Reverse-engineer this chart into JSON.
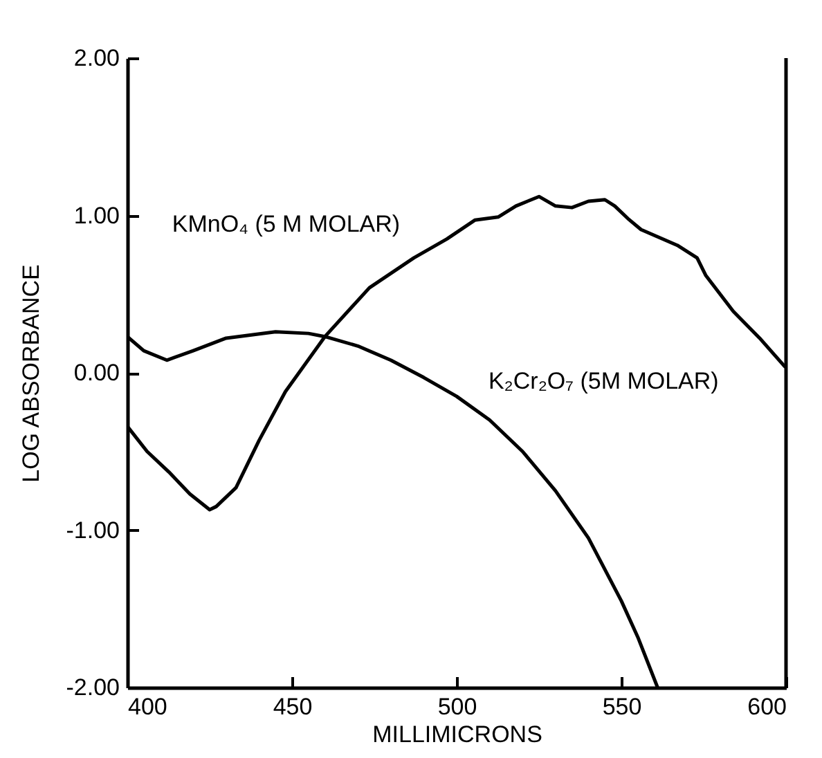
{
  "chart_data": {
    "type": "line",
    "xlabel": "MILLIMICRONS",
    "ylabel": "LOG  ABSORBANCE",
    "xlim": [
      400,
      600
    ],
    "xticks": [
      400,
      450,
      500,
      550,
      600
    ],
    "ylim": [
      -2,
      2
    ],
    "yticks": [
      {
        "value": -2,
        "label": "-2.00"
      },
      {
        "value": -1,
        "label": "-1.00"
      },
      {
        "value": 0,
        "label": "0.00"
      },
      {
        "value": 1,
        "label": "1.00"
      },
      {
        "value": 2,
        "label": "2.00"
      }
    ],
    "grid": false,
    "line_style": "solid",
    "series": [
      {
        "color": "#000000",
        "x": [
          400,
          406,
          412.6,
          419,
          425,
          427,
          433,
          440,
          448,
          460,
          473.5,
          487,
          497,
          505.5,
          512.6,
          518,
          525,
          530,
          535,
          540,
          545,
          548,
          552,
          556,
          567,
          573,
          575.6,
          584,
          592,
          599.6
        ],
        "values": [
          -0.34,
          -0.5,
          -0.63,
          -0.77,
          -0.87,
          -0.85,
          -0.73,
          -0.43,
          -0.12,
          0.23,
          0.54,
          0.73,
          0.85,
          0.97,
          0.99,
          1.06,
          1.12,
          1.06,
          1.05,
          1.09,
          1.1,
          1.06,
          0.98,
          0.91,
          0.81,
          0.73,
          0.62,
          0.39,
          0.22,
          0.04
        ]
      },
      {
        "color": "#000000",
        "x": [
          400,
          405,
          412,
          420,
          430,
          445,
          455,
          460,
          470,
          480,
          490,
          500,
          510,
          520,
          530,
          540,
          550,
          555,
          561
        ],
        "values": [
          0.23,
          0.14,
          0.08,
          0.14,
          0.22,
          0.26,
          0.25,
          0.23,
          0.17,
          0.08,
          -0.03,
          -0.15,
          -0.3,
          -0.5,
          -0.75,
          -1.05,
          -1.45,
          -1.68,
          -2.0
        ]
      }
    ],
    "annotations": [
      {
        "text": "KMnO₄ (5 M MOLAR)",
        "x": 487,
        "y": 0.73
      },
      {
        "text": "K₂Cr₂O₇ (5M MOLAR)",
        "x": 513,
        "y": -0.32
      }
    ]
  }
}
